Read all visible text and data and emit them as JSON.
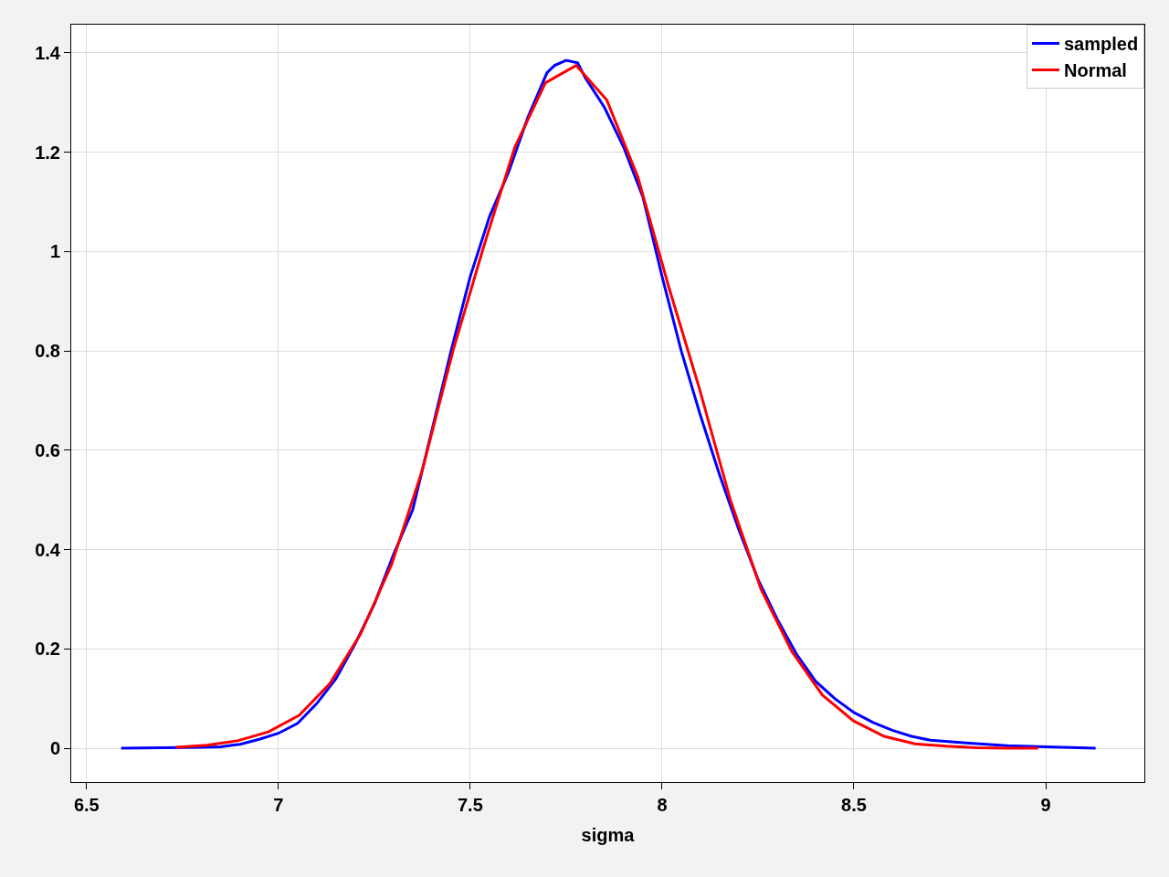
{
  "chart_data": {
    "type": "line",
    "xlabel": "sigma",
    "xlim": [
      6.46,
      9.257
    ],
    "ylim": [
      -0.068,
      1.457
    ],
    "xticks": [
      6.5,
      7,
      7.5,
      8,
      8.5,
      9
    ],
    "yticks": [
      0,
      0.2,
      0.4,
      0.6,
      0.8,
      1,
      1.2,
      1.4
    ],
    "grid": true,
    "legend": "top right",
    "series": [
      {
        "name": "sampled",
        "color": "#0000ff",
        "x": [
          6.59,
          6.7,
          6.8,
          6.85,
          6.9,
          6.95,
          7.0,
          7.05,
          7.1,
          7.15,
          7.2,
          7.25,
          7.3,
          7.35,
          7.4,
          7.45,
          7.5,
          7.55,
          7.6,
          7.65,
          7.7,
          7.72,
          7.75,
          7.78,
          7.8,
          7.85,
          7.9,
          7.95,
          8.0,
          8.05,
          8.1,
          8.15,
          8.2,
          8.25,
          8.3,
          8.35,
          8.4,
          8.45,
          8.5,
          8.55,
          8.6,
          8.65,
          8.7,
          8.8,
          8.9,
          9.0,
          9.13
        ],
        "values": [
          0,
          0.001,
          0.002,
          0.003,
          0.008,
          0.018,
          0.03,
          0.05,
          0.09,
          0.14,
          0.21,
          0.29,
          0.39,
          0.48,
          0.64,
          0.8,
          0.95,
          1.07,
          1.16,
          1.27,
          1.36,
          1.375,
          1.385,
          1.38,
          1.35,
          1.29,
          1.21,
          1.11,
          0.95,
          0.8,
          0.67,
          0.55,
          0.44,
          0.34,
          0.26,
          0.19,
          0.135,
          0.1,
          0.072,
          0.052,
          0.036,
          0.024,
          0.016,
          0.01,
          0.005,
          0.003,
          0
        ]
      },
      {
        "name": "Normal",
        "color": "#ff0000",
        "x": [
          6.733,
          6.813,
          6.893,
          6.974,
          7.054,
          7.134,
          7.214,
          7.295,
          7.375,
          7.455,
          7.535,
          7.616,
          7.696,
          7.776,
          7.856,
          7.937,
          8.017,
          8.097,
          8.178,
          8.258,
          8.338,
          8.418,
          8.499,
          8.579,
          8.659,
          8.74,
          8.82,
          8.9,
          8.98
        ],
        "values": [
          0.002,
          0.006,
          0.015,
          0.033,
          0.066,
          0.13,
          0.23,
          0.37,
          0.56,
          0.8,
          1.01,
          1.21,
          1.34,
          1.375,
          1.305,
          1.15,
          0.93,
          0.725,
          0.5,
          0.32,
          0.195,
          0.107,
          0.055,
          0.024,
          0.009,
          0.004,
          0.001,
          0,
          0
        ]
      }
    ]
  }
}
